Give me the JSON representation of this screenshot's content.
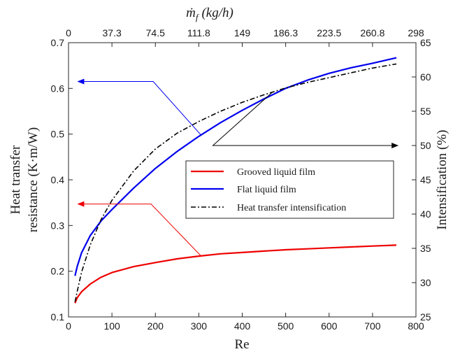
{
  "chart_data": {
    "type": "line",
    "x_axis": {
      "label": "Re",
      "lim": [
        0,
        800
      ],
      "ticks": [
        "0",
        "100",
        "200",
        "300",
        "400",
        "500",
        "600",
        "700",
        "800"
      ]
    },
    "top_axis": {
      "label": "ṁ_f (kg/h)",
      "label_main": "ṁ",
      "label_sub": "f",
      "label_unit": "(kg/h)",
      "ticks": [
        "0",
        "37.3",
        "74.5",
        "111.8",
        "149",
        "186.3",
        "223.5",
        "260.8",
        "298"
      ]
    },
    "y_left": {
      "label_line1": "Heat transfer",
      "label_line2": "resistance (K·m/W)",
      "lim": [
        0.1,
        0.7
      ],
      "ticks": [
        "0.1",
        "0.2",
        "0.3",
        "0.4",
        "0.5",
        "0.6",
        "0.7"
      ]
    },
    "y_right": {
      "label": "Intensification (%)",
      "lim": [
        25,
        65
      ],
      "ticks": [
        "25",
        "30",
        "35",
        "40",
        "45",
        "50",
        "55",
        "60",
        "65"
      ]
    },
    "series": [
      {
        "name": "Grooved liquid film",
        "axis": "left",
        "color": "#ee0000",
        "style": "solid",
        "x": [
          15,
          20,
          30,
          50,
          75,
          100,
          150,
          200,
          250,
          300,
          350,
          400,
          450,
          500,
          550,
          600,
          650,
          700,
          755
        ],
        "y": [
          0.13,
          0.142,
          0.155,
          0.172,
          0.187,
          0.197,
          0.21,
          0.219,
          0.227,
          0.233,
          0.238,
          0.241,
          0.244,
          0.247,
          0.249,
          0.251,
          0.253,
          0.255,
          0.257
        ]
      },
      {
        "name": "Flat liquid film",
        "axis": "left",
        "color": "#0000ee",
        "style": "solid",
        "x": [
          15,
          20,
          30,
          50,
          75,
          100,
          150,
          200,
          250,
          300,
          350,
          400,
          450,
          500,
          550,
          600,
          650,
          700,
          755
        ],
        "y": [
          0.19,
          0.21,
          0.24,
          0.278,
          0.31,
          0.335,
          0.382,
          0.425,
          0.462,
          0.495,
          0.525,
          0.552,
          0.577,
          0.6,
          0.618,
          0.633,
          0.645,
          0.655,
          0.667
        ]
      },
      {
        "name": "Heat transfer intensification",
        "axis": "right",
        "color": "#000000",
        "style": "dashdot",
        "x": [
          15,
          20,
          30,
          50,
          75,
          100,
          150,
          200,
          250,
          300,
          350,
          400,
          450,
          500,
          550,
          600,
          650,
          700,
          755
        ],
        "y": [
          27.2,
          28.7,
          31.5,
          35.5,
          39.2,
          42.0,
          46.3,
          49.5,
          51.8,
          53.5,
          55.0,
          56.3,
          57.4,
          58.4,
          59.2,
          59.9,
          60.6,
          61.3,
          61.9
        ]
      }
    ],
    "legend": {
      "position": "center-right",
      "entries": [
        "Grooved liquid film",
        "Flat liquid film",
        "Heat transfer intensification"
      ]
    },
    "annotations": [
      {
        "type": "arrow",
        "points_to": "left-axis",
        "from_series": "Flat liquid film",
        "at_x": 305,
        "color": "#0000ee"
      },
      {
        "type": "arrow",
        "points_to": "left-axis",
        "from_series": "Grooved liquid film",
        "at_x": 305,
        "color": "#ee0000"
      },
      {
        "type": "arrow",
        "points_to": "right-axis",
        "from_series": "Heat transfer intensification",
        "at_x": 470,
        "color": "#000000"
      }
    ],
    "grid": false
  }
}
